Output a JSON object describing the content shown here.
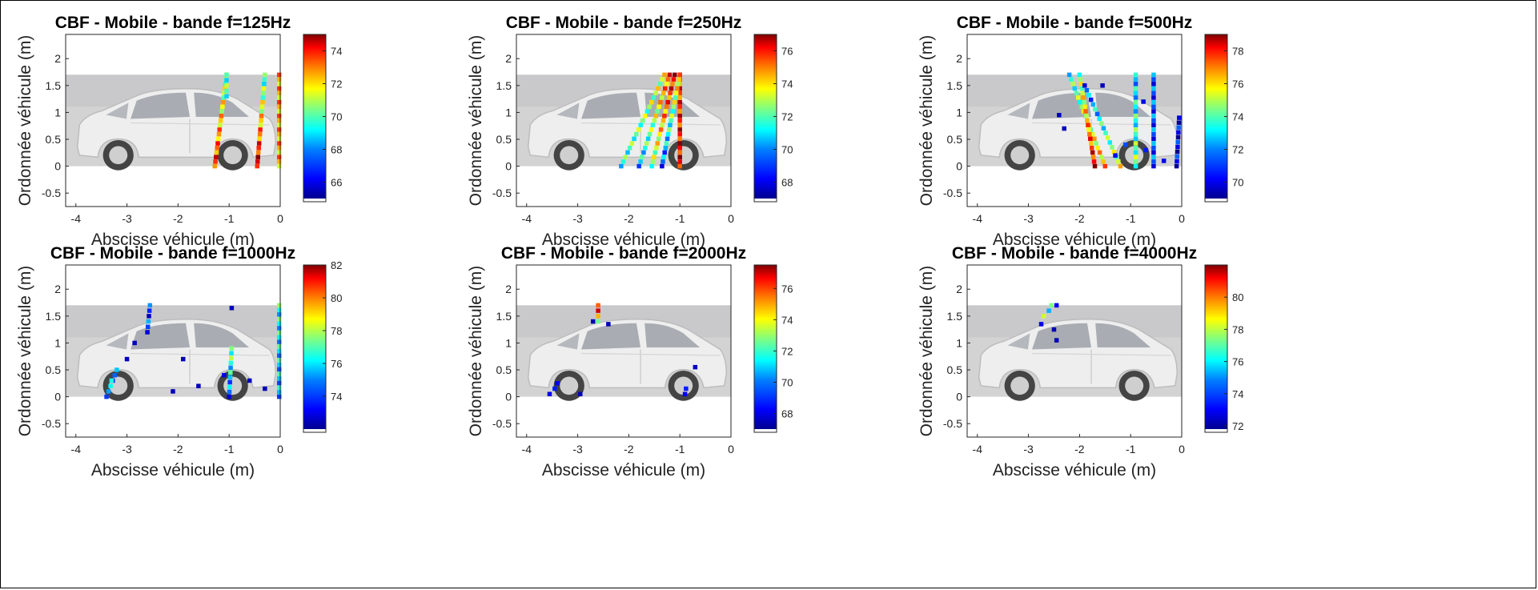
{
  "figure": {
    "type": "acoustic-beamforming-maps"
  },
  "colors": {
    "colormap": [
      "#00008f",
      "#0000ff",
      "#0080ff",
      "#00ffff",
      "#80ff80",
      "#ffff00",
      "#ff8000",
      "#ff0000",
      "#800000"
    ]
  },
  "chart_data": [
    {
      "type": "heatmap",
      "title": "CBF - Mobile - bande f=125Hz",
      "xlabel": "Abscisse véhicule (m)",
      "ylabel": "Ordonnée véhicule (m)",
      "xlim": [
        -4.2,
        0
      ],
      "ylim": [
        -0.75,
        2.45
      ],
      "xticks": [
        "-4",
        "-3",
        "-2",
        "-1",
        "0"
      ],
      "yticks": [
        "-0.5",
        "0",
        "0.5",
        "1",
        "1.5",
        "2"
      ],
      "colorbar": {
        "range": [
          65,
          75
        ],
        "ticks": [
          "66",
          "68",
          "70",
          "72",
          "74"
        ]
      },
      "strokes": [
        {
          "x": [
            -1.28,
            -1.05
          ],
          "y": [
            0.0,
            1.7
          ],
          "level": [
            0.85,
            0.5
          ]
        },
        {
          "x": [
            -0.45,
            -0.3
          ],
          "y": [
            0.0,
            1.7
          ],
          "level": [
            0.95,
            0.4
          ]
        },
        {
          "x": [
            -1.05,
            -1.05
          ],
          "y": [
            1.3,
            1.7
          ],
          "level": [
            0.45,
            0.45
          ]
        },
        {
          "x": [
            -0.02,
            -0.02
          ],
          "y": [
            0.0,
            1.7
          ],
          "level": [
            0.7,
            0.7
          ]
        }
      ],
      "points": []
    },
    {
      "type": "heatmap",
      "title": "CBF - Mobile - bande f=250Hz",
      "xlabel": "Abscisse véhicule (m)",
      "ylabel": "Ordonnée véhicule (m)",
      "xlim": [
        -4.2,
        0
      ],
      "ylim": [
        -0.75,
        2.45
      ],
      "xticks": [
        "-4",
        "-3",
        "-2",
        "-1",
        "0"
      ],
      "yticks": [
        "-0.5",
        "0",
        "0.5",
        "1",
        "1.5",
        "2"
      ],
      "colorbar": {
        "range": [
          67,
          77
        ],
        "ticks": [
          "68",
          "70",
          "72",
          "74",
          "76"
        ]
      },
      "strokes": [
        {
          "x": [
            -2.15,
            -1.3
          ],
          "y": [
            0.0,
            1.7
          ],
          "level": [
            0.4,
            0.6
          ]
        },
        {
          "x": [
            -1.8,
            -1.2
          ],
          "y": [
            0.0,
            1.7
          ],
          "level": [
            0.3,
            0.8
          ]
        },
        {
          "x": [
            -1.55,
            -1.1
          ],
          "y": [
            0.0,
            1.7
          ],
          "level": [
            0.5,
            0.9
          ]
        },
        {
          "x": [
            -1.0,
            -1.0
          ],
          "y": [
            0.0,
            1.7
          ],
          "level": [
            0.9,
            0.8
          ]
        },
        {
          "x": [
            -1.35,
            -1.0
          ],
          "y": [
            0.0,
            1.7
          ],
          "level": [
            0.2,
            0.7
          ]
        }
      ],
      "points": []
    },
    {
      "type": "heatmap",
      "title": "CBF - Mobile - bande f=500Hz",
      "xlabel": "Abscisse véhicule (m)",
      "ylabel": "Ordonnée véhicule (m)",
      "xlim": [
        -4.2,
        0
      ],
      "ylim": [
        -0.75,
        2.45
      ],
      "xticks": [
        "-4",
        "-3",
        "-2",
        "-1",
        "0"
      ],
      "yticks": [
        "-0.5",
        "0",
        "0.5",
        "1",
        "1.5",
        "2"
      ],
      "colorbar": {
        "range": [
          69,
          79
        ],
        "ticks": [
          "70",
          "72",
          "74",
          "76",
          "78"
        ]
      },
      "strokes": [
        {
          "x": [
            -2.2,
            -1.5
          ],
          "y": [
            1.7,
            0.0
          ],
          "level": [
            0.4,
            0.7
          ]
        },
        {
          "x": [
            -2.0,
            -1.7
          ],
          "y": [
            1.7,
            0.0
          ],
          "level": [
            0.5,
            0.9
          ]
        },
        {
          "x": [
            -1.9,
            -1.2
          ],
          "y": [
            1.5,
            0.0
          ],
          "level": [
            0.2,
            0.6
          ]
        },
        {
          "x": [
            -0.9,
            -0.9
          ],
          "y": [
            0.0,
            1.7
          ],
          "level": [
            0.5,
            0.3
          ]
        },
        {
          "x": [
            -0.55,
            -0.55
          ],
          "y": [
            0.0,
            1.7
          ],
          "level": [
            0.2,
            0.2
          ]
        },
        {
          "x": [
            -0.1,
            -0.05
          ],
          "y": [
            0.0,
            0.9
          ],
          "level": [
            0.1,
            0.1
          ]
        }
      ],
      "points": [
        {
          "x": -2.4,
          "y": 0.95,
          "level": 0.05
        },
        {
          "x": -2.3,
          "y": 0.7,
          "level": 0.05
        },
        {
          "x": -1.3,
          "y": 0.2,
          "level": 0.1
        },
        {
          "x": -1.1,
          "y": 0.4,
          "level": 0.2
        },
        {
          "x": -0.7,
          "y": 0.3,
          "level": 0.15
        },
        {
          "x": -0.35,
          "y": 0.1,
          "level": 0.1
        },
        {
          "x": -1.55,
          "y": 1.5,
          "level": 0.05
        },
        {
          "x": -0.75,
          "y": 1.2,
          "level": 0.1
        }
      ]
    },
    {
      "type": "heatmap",
      "title": "CBF - Mobile - bande f=1000Hz",
      "xlabel": "Abscisse véhicule (m)",
      "ylabel": "Ordonnée véhicule (m)",
      "xlim": [
        -4.2,
        0
      ],
      "ylim": [
        -0.75,
        2.45
      ],
      "xticks": [
        "-4",
        "-3",
        "-2",
        "-1",
        "0"
      ],
      "yticks": [
        "-0.5",
        "0",
        "0.5",
        "1",
        "1.5",
        "2"
      ],
      "colorbar": {
        "range": [
          72,
          82
        ],
        "ticks": [
          "74",
          "76",
          "78",
          "80",
          "82"
        ]
      },
      "strokes": [
        {
          "x": [
            -3.4,
            -3.2
          ],
          "y": [
            0.0,
            0.5
          ],
          "level": [
            0.3,
            0.2
          ]
        },
        {
          "x": [
            -2.6,
            -2.55
          ],
          "y": [
            1.2,
            1.7
          ],
          "level": [
            0.2,
            0.15
          ]
        },
        {
          "x": [
            -1.0,
            -0.95
          ],
          "y": [
            0.0,
            0.9
          ],
          "level": [
            0.2,
            0.5
          ]
        },
        {
          "x": [
            -0.02,
            -0.02
          ],
          "y": [
            0.0,
            1.7
          ],
          "level": [
            0.3,
            0.4
          ]
        }
      ],
      "points": [
        {
          "x": -3.0,
          "y": 0.7,
          "level": 0.05
        },
        {
          "x": -2.85,
          "y": 1.0,
          "level": 0.05
        },
        {
          "x": -1.9,
          "y": 0.7,
          "level": 0.05
        },
        {
          "x": -1.6,
          "y": 0.2,
          "level": 0.05
        },
        {
          "x": -1.1,
          "y": 0.4,
          "level": 0.1
        },
        {
          "x": -0.6,
          "y": 0.3,
          "level": 0.05
        },
        {
          "x": -0.3,
          "y": 0.15,
          "level": 0.05
        },
        {
          "x": -0.95,
          "y": 1.65,
          "level": 0.05
        },
        {
          "x": -3.3,
          "y": 0.3,
          "level": 0.4
        },
        {
          "x": -2.1,
          "y": 0.1,
          "level": 0.05
        }
      ]
    },
    {
      "type": "heatmap",
      "title": "CBF - Mobile - bande f=2000Hz",
      "xlabel": "Abscisse véhicule (m)",
      "ylabel": "Ordonnée véhicule (m)",
      "xlim": [
        -4.2,
        0
      ],
      "ylim": [
        -0.75,
        2.45
      ],
      "xticks": [
        "-4",
        "-3",
        "-2",
        "-1",
        "0"
      ],
      "yticks": [
        "-0.5",
        "0",
        "0.5",
        "1",
        "1.5",
        "2"
      ],
      "colorbar": {
        "range": [
          67,
          77.5
        ],
        "ticks": [
          "68",
          "70",
          "72",
          "74",
          "76"
        ]
      },
      "strokes": [
        {
          "x": [
            -2.6,
            -2.6
          ],
          "y": [
            1.4,
            1.7
          ],
          "level": [
            0.6,
            0.9
          ]
        }
      ],
      "points": [
        {
          "x": -3.55,
          "y": 0.05,
          "level": 0.1
        },
        {
          "x": -3.45,
          "y": 0.15,
          "level": 0.15
        },
        {
          "x": -3.4,
          "y": 0.25,
          "level": 0.1
        },
        {
          "x": -2.95,
          "y": 0.05,
          "level": 0.05
        },
        {
          "x": -0.9,
          "y": 0.05,
          "level": 0.1
        },
        {
          "x": -0.88,
          "y": 0.15,
          "level": 0.15
        },
        {
          "x": -0.7,
          "y": 0.55,
          "level": 0.05
        },
        {
          "x": -2.4,
          "y": 1.35,
          "level": 0.05
        },
        {
          "x": -2.7,
          "y": 1.4,
          "level": 0.05
        }
      ]
    },
    {
      "type": "heatmap",
      "title": "CBF - Mobile - bande f=4000Hz",
      "xlabel": "Abscisse véhicule (m)",
      "ylabel": "Ordonnée véhicule (m)",
      "xlim": [
        -4.2,
        0
      ],
      "ylim": [
        -0.75,
        2.45
      ],
      "xticks": [
        "-4",
        "-3",
        "-2",
        "-1",
        "0"
      ],
      "yticks": [
        "-0.5",
        "0",
        "0.5",
        "1",
        "1.5",
        "2"
      ],
      "colorbar": {
        "range": [
          71.8,
          82
        ],
        "ticks": [
          "72",
          "74",
          "76",
          "78",
          "80"
        ]
      },
      "strokes": [
        {
          "x": [
            -2.7,
            -2.55
          ],
          "y": [
            1.5,
            1.7
          ],
          "level": [
            0.7,
            0.5
          ]
        }
      ],
      "points": [
        {
          "x": -2.75,
          "y": 1.35,
          "level": 0.1
        },
        {
          "x": -2.5,
          "y": 1.25,
          "level": 0.05
        },
        {
          "x": -2.45,
          "y": 1.05,
          "level": 0.05
        },
        {
          "x": -2.6,
          "y": 1.6,
          "level": 0.3
        },
        {
          "x": -2.45,
          "y": 1.7,
          "level": 0.1
        }
      ]
    }
  ]
}
